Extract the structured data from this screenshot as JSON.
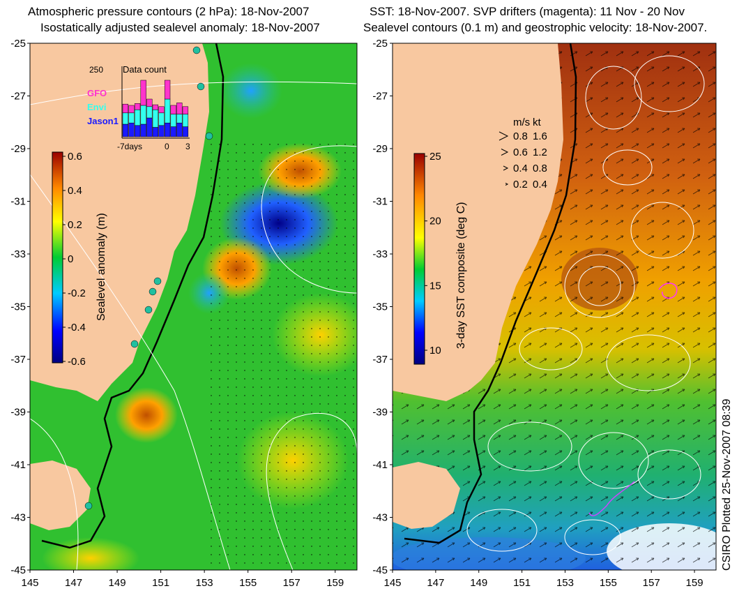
{
  "left_panel": {
    "title_line1": "Atmospheric pressure contours (2 hPa): 18-Nov-2007",
    "title_line2": "Isostatically adjusted sealevel anomaly: 18-Nov-2007",
    "colorbar": {
      "label": "Sealevel anomaly (m)",
      "ticks": [
        "0.6",
        "0.4",
        "0.2",
        "0",
        "-0.2",
        "-0.4",
        "-0.6"
      ]
    },
    "data_count": {
      "max_label": "250",
      "title": "Data count",
      "satellites": [
        {
          "name": "GFO",
          "color": "#ff33cc"
        },
        {
          "name": "Envi",
          "color": "#33ffee"
        },
        {
          "name": "Jason1",
          "color": "#1a1aff"
        }
      ],
      "axis_labels": [
        "-7days",
        "0",
        "3"
      ]
    }
  },
  "right_panel": {
    "title_line1": "SST: 18-Nov-2007. SVP drifters (magenta): 11 Nov - 20 Nov",
    "title_line2": "Sealevel contours (0.1 m) and geostrophic velocity: 18-Nov-2007.",
    "colorbar": {
      "label": "3-day SST composite (deg C)",
      "ticks": [
        "25",
        "20",
        "15",
        "10"
      ]
    },
    "velocity_legend": {
      "header_ms": "m/s",
      "header_kt": "kt",
      "rows": [
        {
          "ms": "0.8",
          "kt": "1.6"
        },
        {
          "ms": "0.6",
          "kt": "1.2"
        },
        {
          "ms": "0.4",
          "kt": "0.8"
        },
        {
          "ms": "0.2",
          "kt": "0.4"
        }
      ]
    }
  },
  "y_axis_labels": [
    "-25",
    "-27",
    "-29",
    "-31",
    "-33",
    "-35",
    "-37",
    "-39",
    "-41",
    "-43",
    "-45"
  ],
  "x_axis_labels": [
    "145",
    "147",
    "149",
    "151",
    "153",
    "155",
    "157",
    "159"
  ],
  "credit": "CSIRO Plotted 25-Nov-2007 08:39",
  "colors": {
    "land": "#f8c8a0",
    "ssh_zero": "#2dc02d",
    "ssh_positive": "#ffa500",
    "ssh_negative": "#1a1acc",
    "sst_warm": "#c85010",
    "sst_cool": "#20b040",
    "drifter": "#ff33ff"
  }
}
